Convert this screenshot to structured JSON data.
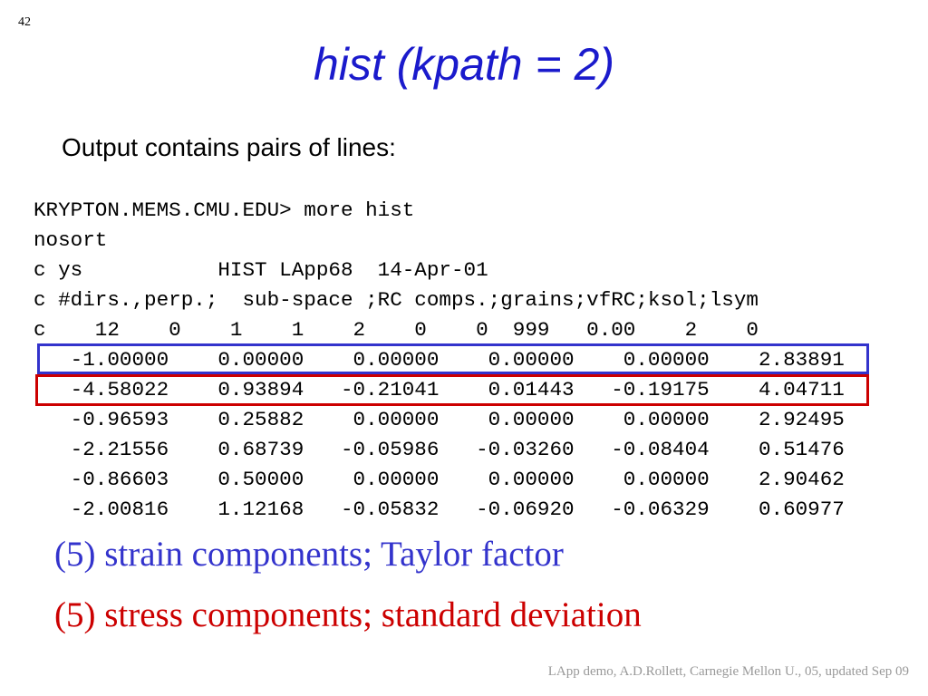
{
  "slide_number": "42",
  "title": "hist (kpath = 2)",
  "subtitle": "Output contains pairs of lines:",
  "code_lines": [
    "KRYPTON.MEMS.CMU.EDU> more hist",
    "nosort",
    "c ys           HIST LApp68  14-Apr-01",
    "c #dirs.,perp.;  sub-space ;RC comps.;grains;vfRC;ksol;lsym",
    "c    12    0    1    1    2    0    0  999   0.00    2    0",
    "   -1.00000    0.00000    0.00000    0.00000    0.00000    2.83891",
    "   -4.58022    0.93894   -0.21041    0.01443   -0.19175    4.04711",
    "   -0.96593    0.25882    0.00000    0.00000    0.00000    2.92495",
    "   -2.21556    0.68739   -0.05986   -0.03260   -0.08404    0.51476",
    "   -0.86603    0.50000    0.00000    0.00000    0.00000    2.90462",
    "   -2.00816    1.12168   -0.05832   -0.06920   -0.06329    0.60977"
  ],
  "captions": [
    "(5) strain components; Taylor factor",
    "(5) stress components; standard deviation"
  ],
  "footer": "LApp demo, A.D.Rollett, Carnegie Mellon U., 05, updated Sep 09"
}
